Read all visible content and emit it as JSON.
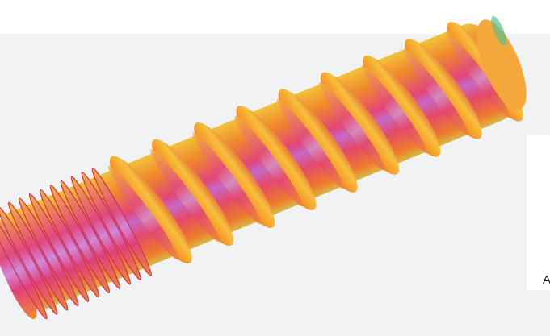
{
  "caption_fragment": "A"
}
